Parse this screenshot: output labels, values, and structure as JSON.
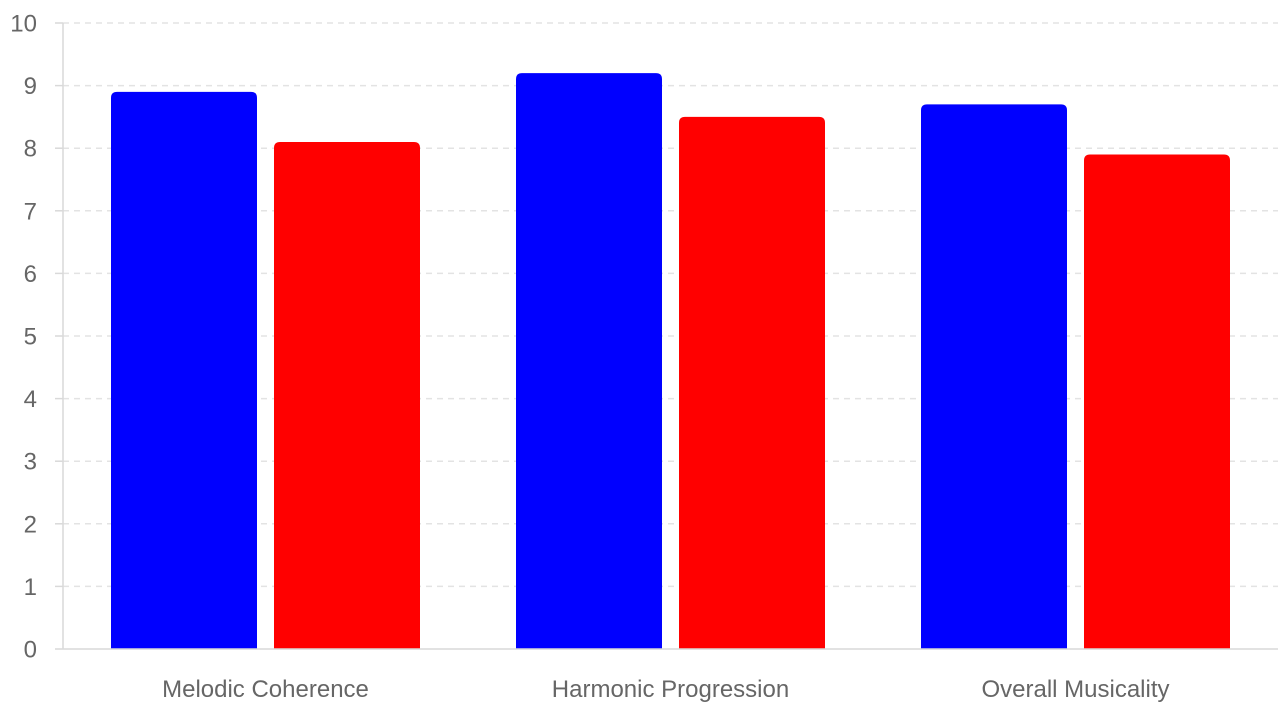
{
  "chart_data": {
    "type": "bar",
    "title": "",
    "xlabel": "",
    "ylabel": "",
    "categories": [
      "Melodic Coherence",
      "Harmonic Progression",
      "Overall Musicality"
    ],
    "series": [
      {
        "values": [
          8.9,
          9.2,
          8.7
        ],
        "color": "#0000ff"
      },
      {
        "values": [
          8.1,
          8.5,
          7.9
        ],
        "color": "#ff0000"
      }
    ],
    "ylim": [
      0,
      10
    ],
    "yticks": [
      "0",
      "1",
      "2",
      "3",
      "4",
      "5",
      "6",
      "7",
      "8",
      "9",
      "10"
    ],
    "grid": true,
    "legend": "none"
  }
}
